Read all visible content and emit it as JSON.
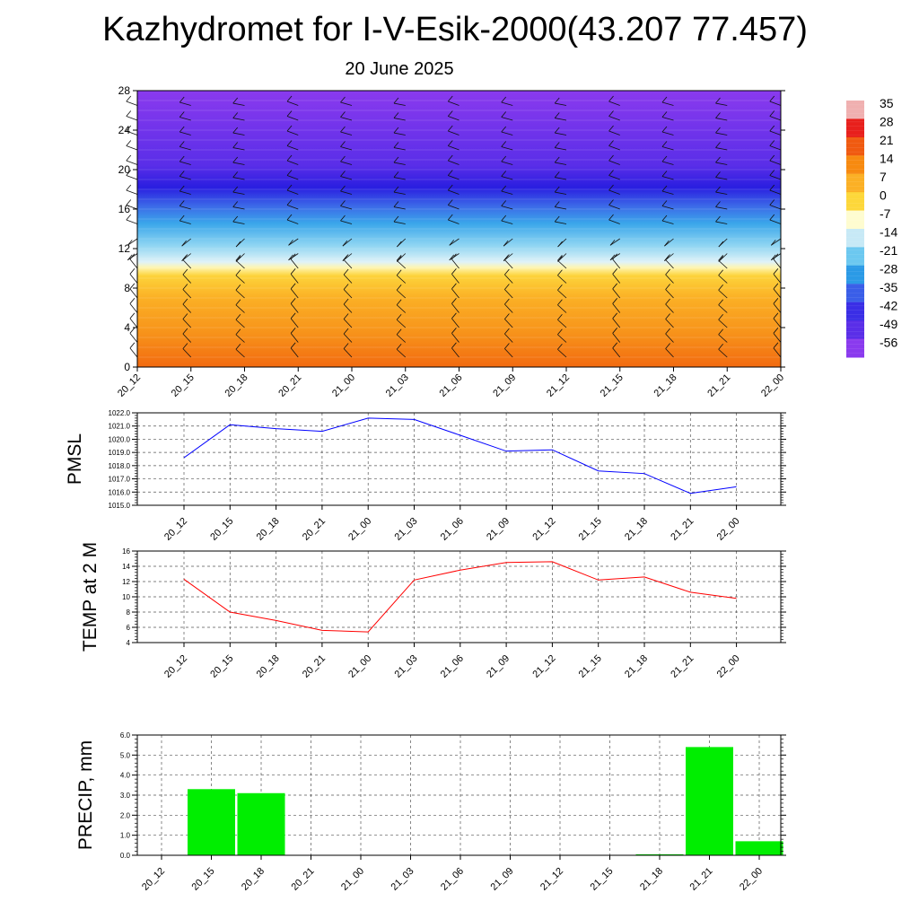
{
  "header": {
    "title": "Kazhydromet for I-V-Esik-2000(43.207 77.457)",
    "date": "20 June 2025"
  },
  "chart_data": [
    {
      "type": "heatmap",
      "name": "vertical-cross-section",
      "x_ticks": [
        "20_12",
        "20_15",
        "20_18",
        "20_21",
        "21_00",
        "21_03",
        "21_06",
        "21_09",
        "21_12",
        "21_15",
        "21_18",
        "21_21",
        "22_00"
      ],
      "y_ticks": [
        "0",
        "4",
        "8",
        "12",
        "16",
        "20",
        "24",
        "28"
      ],
      "ylim": [
        0,
        28
      ],
      "colorbar": {
        "labels": [
          "35",
          "28",
          "21",
          "14",
          "7",
          "0",
          "-7",
          "-14",
          "-21",
          "-28",
          "-35",
          "-42",
          "-49",
          "-56"
        ],
        "colors": [
          "#f0b0b0",
          "#e8201c",
          "#f05a10",
          "#f78a10",
          "#fbb025",
          "#fdd73a",
          "#fefcd0",
          "#c7e9f6",
          "#6cc8f0",
          "#2b9ae6",
          "#3a5ee8",
          "#3a2ee6",
          "#5a2ee8",
          "#8a3aee"
        ]
      },
      "wind_barbs": true
    },
    {
      "type": "line",
      "name": "pmsl",
      "ylabel": "PMSL",
      "categories": [
        "20_12",
        "20_15",
        "20_18",
        "20_21",
        "21_00",
        "21_03",
        "21_06",
        "21_09",
        "21_12",
        "21_15",
        "21_18",
        "21_21",
        "22_00"
      ],
      "y_ticks": [
        "1015.0",
        "1016.0",
        "1017.0",
        "1018.0",
        "1019.0",
        "1020.0",
        "1021.0",
        "1022.0"
      ],
      "ylim": [
        1015,
        1022
      ],
      "series": [
        {
          "values": [
            1018.6,
            1021.1,
            1020.8,
            1020.6,
            1021.6,
            1021.5,
            1020.3,
            1019.1,
            1019.2,
            1017.6,
            1017.4,
            1015.9,
            1016.4
          ],
          "color": "#0000ff"
        }
      ],
      "grid": true
    },
    {
      "type": "line",
      "name": "temp",
      "ylabel": "TEMP at 2 M",
      "categories": [
        "20_12",
        "20_15",
        "20_18",
        "20_21",
        "21_00",
        "21_03",
        "21_06",
        "21_09",
        "21_12",
        "21_15",
        "21_18",
        "21_21",
        "22_00"
      ],
      "y_ticks": [
        "4",
        "6",
        "8",
        "10",
        "12",
        "14",
        "16"
      ],
      "ylim": [
        4,
        16
      ],
      "series": [
        {
          "values": [
            12.3,
            8.0,
            6.9,
            5.6,
            5.4,
            12.2,
            13.5,
            14.5,
            14.6,
            12.2,
            12.6,
            10.6,
            9.8
          ],
          "color": "#ff0000"
        }
      ],
      "grid": true
    },
    {
      "type": "bar",
      "name": "precip",
      "ylabel": "PRECIP, mm",
      "categories": [
        "20_12",
        "20_15",
        "20_18",
        "20_21",
        "21_00",
        "21_03",
        "21_06",
        "21_09",
        "21_12",
        "21_15",
        "21_18",
        "21_21",
        "22_00"
      ],
      "y_ticks": [
        "0.0",
        "1.0",
        "2.0",
        "3.0",
        "4.0",
        "5.0",
        "6.0"
      ],
      "ylim": [
        0,
        6
      ],
      "values": [
        0,
        3.3,
        3.1,
        0,
        0,
        0,
        0,
        0,
        0,
        0,
        0.05,
        5.4,
        0.7
      ],
      "color": "#00ee00",
      "grid": true
    }
  ]
}
